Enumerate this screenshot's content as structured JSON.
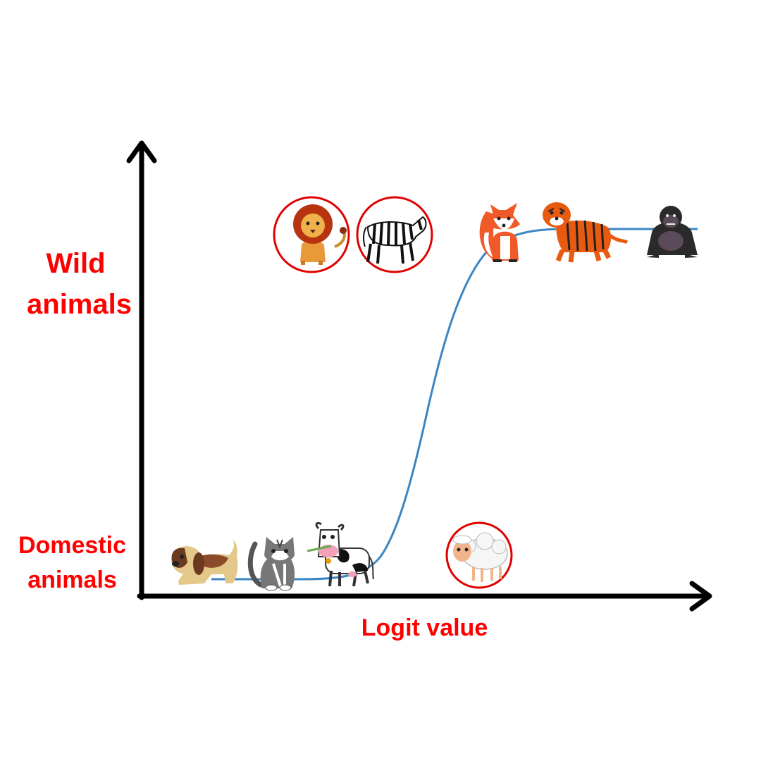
{
  "labels": {
    "y_top_line1": "Wild",
    "y_top_line2": "animals",
    "y_bottom_line1": "Domestic",
    "y_bottom_line2": "animals",
    "x_axis": "Logit value"
  },
  "colors": {
    "label": "#ff0000",
    "curve": "#3a86c4",
    "axis": "#000000",
    "highlight_ring": "#e00000"
  },
  "animals": [
    {
      "name": "dog",
      "icon": "dog-icon",
      "class": "domestic",
      "circled": false
    },
    {
      "name": "cat",
      "icon": "cat-icon",
      "class": "domestic",
      "circled": false
    },
    {
      "name": "cow",
      "icon": "cow-icon",
      "class": "domestic",
      "circled": false
    },
    {
      "name": "sheep",
      "icon": "sheep-icon",
      "class": "domestic",
      "circled": true
    },
    {
      "name": "lion",
      "icon": "lion-icon",
      "class": "wild",
      "circled": true
    },
    {
      "name": "zebra",
      "icon": "zebra-icon",
      "class": "wild",
      "circled": true
    },
    {
      "name": "fox",
      "icon": "fox-icon",
      "class": "wild",
      "circled": false
    },
    {
      "name": "tiger",
      "icon": "tiger-icon",
      "class": "wild",
      "circled": false
    },
    {
      "name": "gorilla",
      "icon": "gorilla-icon",
      "class": "wild",
      "circled": false
    }
  ]
}
